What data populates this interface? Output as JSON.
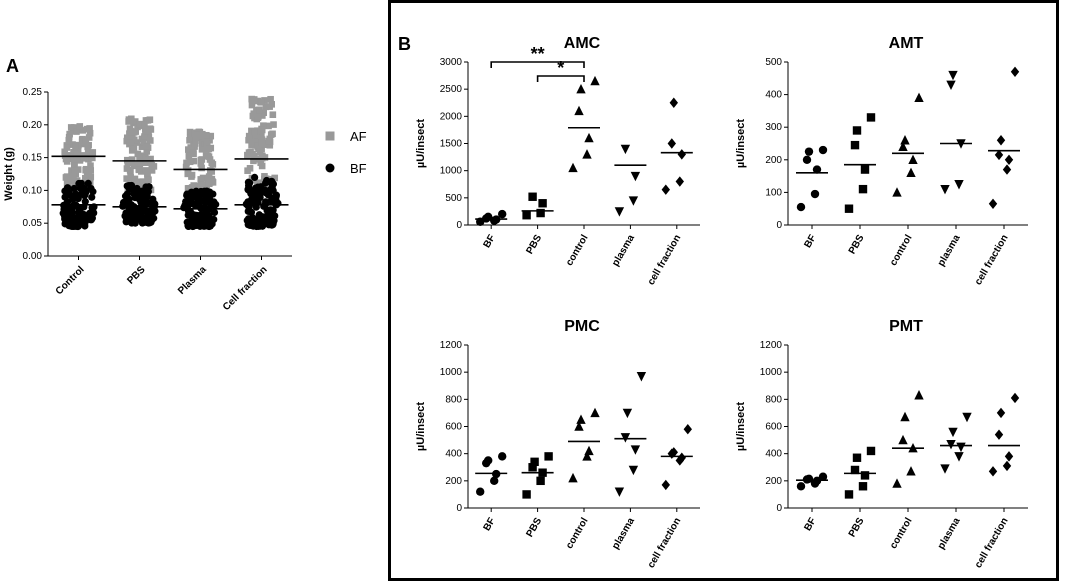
{
  "panel_labels": {
    "a": "A",
    "b": "B"
  },
  "chart_data": [
    {
      "id": "A",
      "type": "scatter",
      "categories": [
        "Control",
        "PBS",
        "Plasma",
        "Cell fraction"
      ],
      "ylabel": "Weight (g)",
      "ylim": [
        0,
        0.25
      ],
      "yticks": [
        "0.00",
        "0.05",
        "0.10",
        "0.15",
        "0.20",
        "0.25"
      ],
      "legend_position": "right",
      "series": [
        {
          "name": "AF",
          "color": "#999999",
          "marker": "square",
          "means": [
            0.152,
            0.145,
            0.132,
            0.148
          ],
          "ranges": [
            [
              0.1,
              0.2
            ],
            [
              0.1,
              0.21
            ],
            [
              0.09,
              0.19
            ],
            [
              0.09,
              0.24
            ]
          ]
        },
        {
          "name": "BF",
          "color": "#000000",
          "marker": "circle",
          "means": [
            0.078,
            0.075,
            0.072,
            0.078
          ],
          "ranges": [
            [
              0.045,
              0.115
            ],
            [
              0.05,
              0.11
            ],
            [
              0.045,
              0.1
            ],
            [
              0.045,
              0.12
            ]
          ]
        }
      ]
    },
    {
      "id": "AMC",
      "type": "scatter",
      "title": "AMC",
      "ylabel": "µU/insect",
      "ylim": [
        0,
        3000
      ],
      "yticks": [
        0,
        500,
        1000,
        1500,
        2000,
        2500,
        3000
      ],
      "categories": [
        "BF",
        "PBS",
        "control",
        "plasma",
        "cell fraction"
      ],
      "markers": [
        "circle",
        "square",
        "triangle-up",
        "triangle-down",
        "diamond"
      ],
      "points": [
        [
          60,
          80,
          100,
          120,
          150,
          200
        ],
        [
          180,
          220,
          400,
          520
        ],
        [
          1050,
          1300,
          1600,
          2100,
          2500,
          2650
        ],
        [
          250,
          450,
          900,
          1400
        ],
        [
          650,
          800,
          1300,
          1500,
          2250
        ]
      ],
      "means": [
        110,
        260,
        1790,
        1100,
        1330
      ],
      "annotations": [
        {
          "from": 0,
          "to": 2,
          "label": "**"
        },
        {
          "from": 1,
          "to": 2,
          "label": "*"
        }
      ]
    },
    {
      "id": "AMT",
      "type": "scatter",
      "title": "AMT",
      "ylabel": "µU/insect",
      "ylim": [
        0,
        500
      ],
      "yticks": [
        0,
        100,
        200,
        300,
        400,
        500
      ],
      "categories": [
        "BF",
        "PBS",
        "control",
        "plasma",
        "cell fraction"
      ],
      "markers": [
        "circle",
        "square",
        "triangle-up",
        "triangle-down",
        "diamond"
      ],
      "points": [
        [
          55,
          95,
          170,
          200,
          225,
          230
        ],
        [
          50,
          110,
          170,
          245,
          290,
          330
        ],
        [
          100,
          160,
          200,
          240,
          260,
          390
        ],
        [
          110,
          125,
          250,
          430,
          460
        ],
        [
          65,
          170,
          200,
          215,
          260,
          470
        ]
      ],
      "means": [
        160,
        185,
        220,
        250,
        228
      ]
    },
    {
      "id": "PMC",
      "type": "scatter",
      "title": "PMC",
      "ylabel": "µU/insect",
      "ylim": [
        0,
        1200
      ],
      "yticks": [
        0,
        200,
        400,
        600,
        800,
        1000,
        1200
      ],
      "categories": [
        "BF",
        "PBS",
        "control",
        "plasma",
        "cell fraction"
      ],
      "markers": [
        "circle",
        "square",
        "triangle-up",
        "triangle-down",
        "diamond"
      ],
      "points": [
        [
          120,
          200,
          250,
          330,
          350,
          380
        ],
        [
          100,
          200,
          260,
          300,
          340,
          380
        ],
        [
          220,
          380,
          420,
          600,
          650,
          700
        ],
        [
          120,
          280,
          430,
          520,
          700,
          970
        ],
        [
          170,
          350,
          370,
          400,
          410,
          580
        ]
      ],
      "means": [
        255,
        260,
        490,
        510,
        380
      ]
    },
    {
      "id": "PMT",
      "type": "scatter",
      "title": "PMT",
      "ylabel": "µU/insect",
      "ylim": [
        0,
        1200
      ],
      "yticks": [
        0,
        200,
        400,
        600,
        800,
        1000,
        1200
      ],
      "categories": [
        "BF",
        "PBS",
        "control",
        "plasma",
        "cell fraction"
      ],
      "markers": [
        "circle",
        "square",
        "triangle-up",
        "triangle-down",
        "diamond"
      ],
      "points": [
        [
          160,
          180,
          200,
          210,
          215,
          230
        ],
        [
          100,
          160,
          240,
          280,
          370,
          420
        ],
        [
          180,
          270,
          440,
          500,
          670,
          830
        ],
        [
          290,
          380,
          450,
          470,
          560,
          670
        ],
        [
          270,
          310,
          380,
          540,
          700,
          810
        ]
      ],
      "means": [
        205,
        255,
        440,
        460,
        460
      ]
    }
  ]
}
